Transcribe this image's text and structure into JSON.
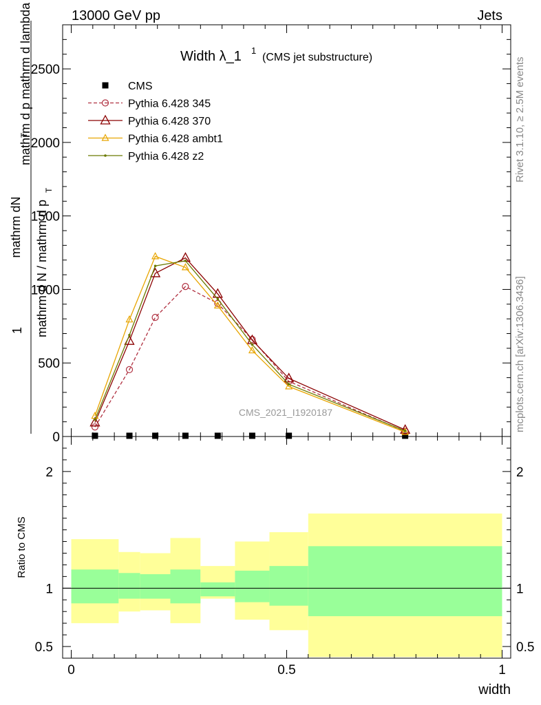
{
  "header": {
    "left": "13000 GeV pp",
    "right": "Jets"
  },
  "main_plot": {
    "title_main": "Width λ_1",
    "title_sup": "1",
    "title_note": "(CMS jet substructure)",
    "watermark": "CMS_2021_I1920187",
    "ylabel_top_main": "mathrm dN",
    "ylabel_top_sub": "T",
    "ylabel_top_rest": "mathrm d p   mathrm d lambda",
    "ylabel_num": "1",
    "ylabel_bottom": "mathrm d N / mathrm d p",
    "ylabel_bottom_sub": "T"
  },
  "ratio_plot": {
    "ylabel": "Ratio to CMS",
    "xlabel": "width"
  },
  "side_text": {
    "rivet": "Rivet 3.1.10, ≥ 2.5M events",
    "mcplots": "mcplots.cern.ch [arXiv:1306.3436]"
  },
  "colors": {
    "cms": "#000000",
    "p345": "#b03040",
    "p370": "#8b0000",
    "ambt1": "#e8a500",
    "z2": "#6b7a00",
    "band_inner": "#99ff99",
    "band_outer": "#ffff99"
  },
  "chart_data": [
    {
      "type": "line",
      "xlim": [
        -0.02,
        1.02
      ],
      "ylim": [
        0,
        2800
      ],
      "yticks": [
        500,
        1000,
        1500,
        2000,
        2500
      ],
      "ytick_labels": [
        "500",
        "1000",
        "1500",
        "2000",
        "2500"
      ],
      "legend_position": "top-left",
      "bins": [
        0.0,
        0.11,
        0.16,
        0.23,
        0.3,
        0.38,
        0.46,
        0.55,
        1.0
      ],
      "series": [
        {
          "name": "CMS",
          "style": "square",
          "x": [
            0.055,
            0.135,
            0.195,
            0.265,
            0.34,
            0.42,
            0.505,
            0.775
          ],
          "y": [
            5,
            5,
            5,
            5,
            5,
            5,
            5,
            5
          ]
        },
        {
          "name": "Pythia 6.428 345",
          "style": "circle-dashed",
          "x": [
            0.055,
            0.135,
            0.195,
            0.265,
            0.34,
            0.42,
            0.505,
            0.775
          ],
          "y": [
            65,
            455,
            810,
            1020,
            905,
            660,
            375,
            35
          ]
        },
        {
          "name": "Pythia 6.428 370",
          "style": "triangle",
          "x": [
            0.055,
            0.135,
            0.195,
            0.265,
            0.34,
            0.42,
            0.505,
            0.775
          ],
          "y": [
            95,
            650,
            1110,
            1215,
            970,
            655,
            395,
            45
          ]
        },
        {
          "name": "Pythia 6.428 ambt1",
          "style": "triangle-small",
          "x": [
            0.055,
            0.135,
            0.195,
            0.265,
            0.34,
            0.42,
            0.505,
            0.775
          ],
          "y": [
            140,
            795,
            1225,
            1150,
            890,
            585,
            340,
            30
          ]
        },
        {
          "name": "Pythia 6.428 z2",
          "style": "dot",
          "x": [
            0.055,
            0.135,
            0.195,
            0.265,
            0.34,
            0.42,
            0.505,
            0.775
          ],
          "y": [
            115,
            690,
            1160,
            1195,
            935,
            625,
            355,
            38
          ]
        }
      ]
    },
    {
      "type": "area",
      "xlim": [
        -0.02,
        1.02
      ],
      "xticks": [
        0,
        0.5,
        1
      ],
      "xtick_labels": [
        "0",
        "0.5",
        "1"
      ],
      "ylim": [
        0.4,
        2.3
      ],
      "yticks": [
        0.5,
        1,
        2
      ],
      "ytick_labels": [
        "0.5",
        "1",
        "2"
      ],
      "bands": {
        "bins": [
          0.0,
          0.11,
          0.16,
          0.23,
          0.3,
          0.38,
          0.46,
          0.55,
          1.0
        ],
        "inner_low": [
          0.87,
          0.91,
          0.91,
          0.87,
          0.93,
          0.88,
          0.85,
          0.76
        ],
        "inner_high": [
          1.16,
          1.13,
          1.12,
          1.16,
          1.05,
          1.15,
          1.19,
          1.36
        ],
        "outer_low": [
          0.7,
          0.8,
          0.81,
          0.7,
          0.91,
          0.73,
          0.64,
          0.41
        ],
        "outer_high": [
          1.42,
          1.31,
          1.3,
          1.43,
          1.19,
          1.4,
          1.48,
          1.64
        ]
      }
    }
  ]
}
